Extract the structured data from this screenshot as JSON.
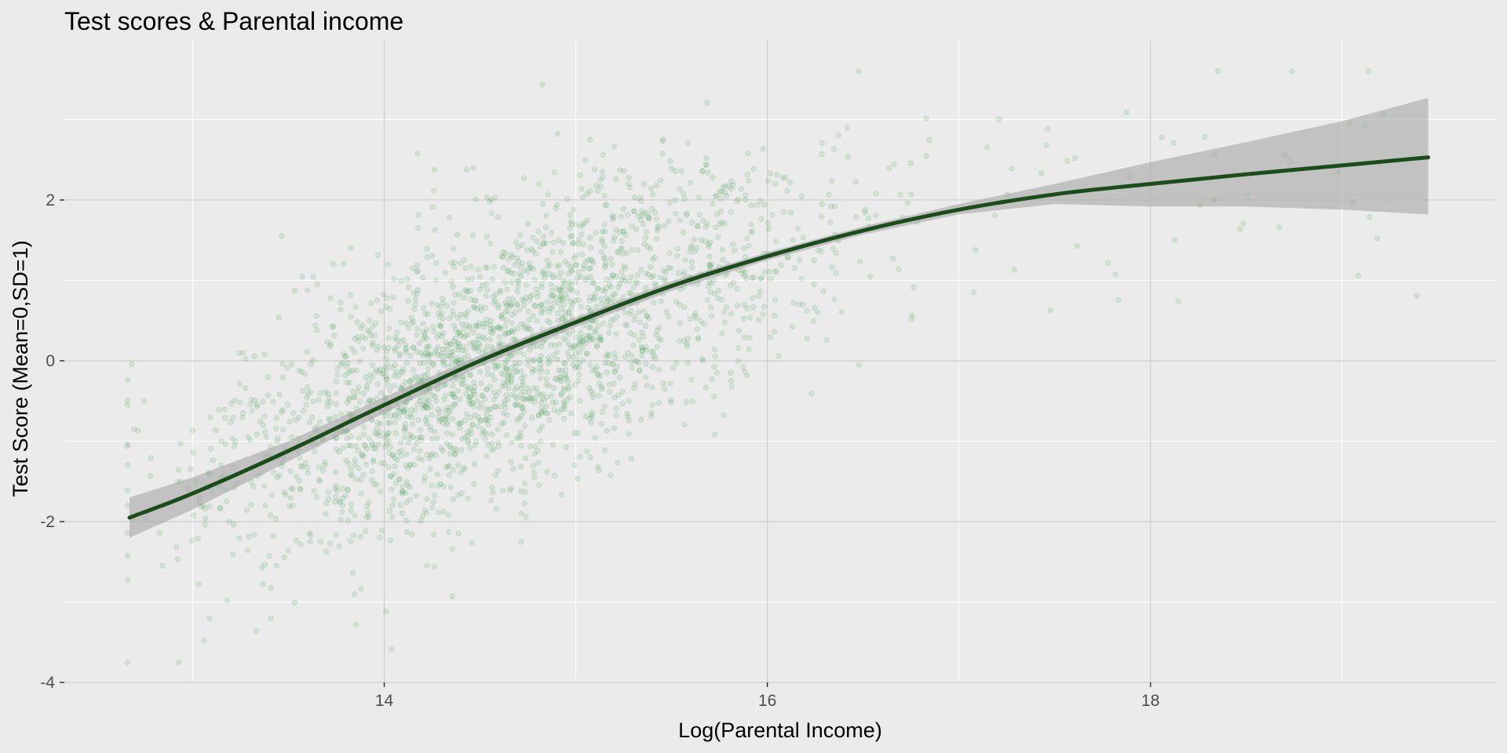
{
  "chart_data": {
    "type": "scatter",
    "title": "Test scores & Parental income",
    "xlabel": "Log(Parental Income)",
    "ylabel": "Test Score (Mean=0,SD=1)",
    "xlim": [
      12.33,
      19.8
    ],
    "ylim": [
      -4.0,
      3.98
    ],
    "x_ticks": [
      14,
      16,
      18
    ],
    "x_tick_labels": [
      "14",
      "16",
      "18"
    ],
    "x_minor": [
      13,
      15,
      17,
      19
    ],
    "y_ticks": [
      -4,
      -2,
      0,
      2
    ],
    "y_tick_labels": [
      "-4",
      "-2",
      "0",
      "2"
    ],
    "y_minor": [
      -3,
      -1,
      1,
      3
    ],
    "grid": true,
    "legend": "none",
    "points": {
      "count": 2400,
      "color": "#3a9a4a",
      "opacity": 0.13,
      "x_mean": 14.6,
      "x_sd": 0.75,
      "x_range": [
        12.66,
        19.45
      ],
      "correlation": 0.5
    },
    "smooth": {
      "method": "loess",
      "color": "#1a4d1a",
      "ribbon_color": "#a6a6a6",
      "x": [
        12.67,
        13.0,
        13.5,
        14.0,
        14.5,
        15.0,
        15.5,
        16.0,
        16.5,
        17.0,
        17.5,
        18.0,
        18.5,
        19.0,
        19.45
      ],
      "y": [
        -1.95,
        -1.65,
        -1.12,
        -0.55,
        0.0,
        0.48,
        0.93,
        1.3,
        1.62,
        1.88,
        2.07,
        2.2,
        2.32,
        2.43,
        2.53
      ],
      "ymin": [
        -2.2,
        -1.85,
        -1.25,
        -0.65,
        -0.07,
        0.42,
        0.87,
        1.25,
        1.57,
        1.82,
        1.95,
        1.92,
        1.92,
        1.88,
        1.82
      ],
      "ymax": [
        -1.7,
        -1.45,
        -1.0,
        -0.45,
        0.07,
        0.54,
        0.99,
        1.35,
        1.67,
        1.95,
        2.2,
        2.47,
        2.72,
        2.98,
        3.27
      ]
    }
  },
  "colors": {
    "panel_background": "#ebebeb",
    "grid_major": "#cccccc",
    "grid_minor": "#ffffff"
  }
}
